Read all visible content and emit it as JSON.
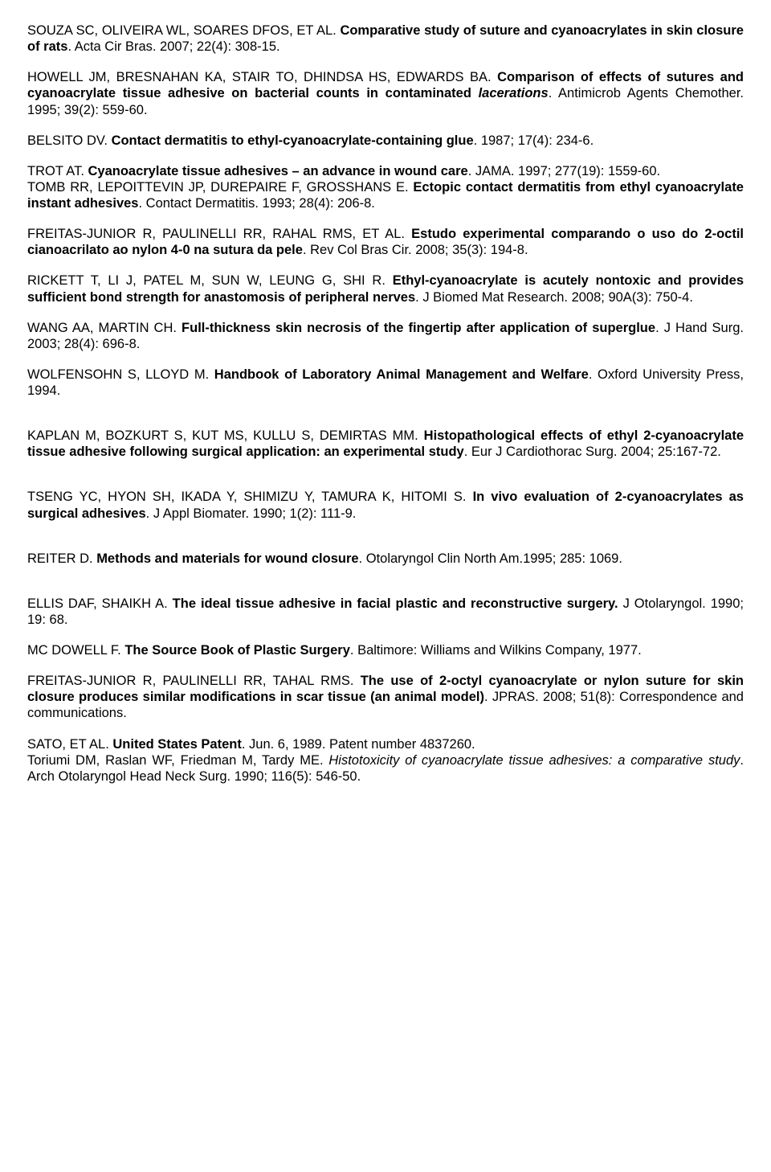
{
  "references": [
    {
      "authors": " SOUZA SC, OLIVEIRA WL, SOARES DFOS, ET AL. ",
      "title": "Comparative study of suture and cyanoacrylates in skin closure of rats",
      "titleStyle": "bold",
      "post": ". Acta Cir Bras. 2007; 22(4): 308-15."
    },
    {
      "authors": "HOWELL JM, BRESNAHAN KA, STAIR TO, DHINDSA HS, EDWARDS BA. ",
      "title": "Comparison of effects of sutures and cyanoacrylate tissue adhesive on bacterial counts in contaminated",
      "titleStyle": "bold",
      "mid": " lacerations",
      "midStyle": "bolditalic",
      "post": ". Antimicrob Agents Chemother. 1995; 39(2): 559-60."
    },
    {
      "authors": "BELSITO DV. ",
      "title": "Contact dermatitis to ethyl-cyanoacrylate-containing glue",
      "titleStyle": "bold",
      "post": ". 1987; 17(4): 234-6."
    },
    {
      "authors": "TROT AT. ",
      "title": "Cyanoacrylate tissue adhesives – an advance in wound care",
      "titleStyle": "bold",
      "post": ". JAMA. 1997; 277(19): 1559-60.",
      "extraAuthors": "TOMB RR, LEPOITTEVIN JP, DUREPAIRE F, GROSSHANS E. ",
      "extraTitle": "Ectopic contact dermatitis from ethyl cyanoacrylate instant adhesives",
      "extraTitleStyle": "bold",
      "extraPost": ". Contact Dermatitis. 1993; 28(4): 206-8."
    },
    {
      "authors": "FREITAS-JUNIOR R, PAULINELLI RR, RAHAL RMS, ET AL. ",
      "title": "Estudo experimental comparando o uso do 2-octil cianoacrilato ao nylon 4-0 na sutura da pele",
      "titleStyle": "bold",
      "post": ". Rev Col Bras Cir. 2008; 35(3): 194-8."
    },
    {
      "authors": "RICKETT T, LI J, PATEL M, SUN W, LEUNG G, SHI R. ",
      "title": "Ethyl-cyanoacrylate is acutely nontoxic and provides sufficient bond strength for anastomosis of peripheral nerves",
      "titleStyle": "bold",
      "post": ". J Biomed Mat Research. 2008; 90A(3): 750-4."
    },
    {
      "authors": "WANG AA, MARTIN CH. ",
      "title": "Full-thickness skin necrosis of the fingertip after application of superglue",
      "titleStyle": "bold",
      "post": ". J Hand Surg. 2003; 28(4): 696-8."
    },
    {
      "authors": "WOLFENSOHN S, LLOYD M. ",
      "title": "Handbook of Laboratory Animal Management and Welfare",
      "titleStyle": "bold",
      "post": ". Oxford University Press, 1994."
    },
    {
      "authors": "KAPLAN M, BOZKURT S, KUT MS, KULLU S, DEMIRTAS MM. ",
      "title": "Histopathological effects of ethyl 2-cyanoacrylate tissue adhesive following surgical application: an experimental study",
      "titleStyle": "bold",
      "post": ". Eur J Cardiothorac Surg. 2004; 25:167-72."
    },
    {
      "authors": "TSENG YC, HYON SH, IKADA Y, SHIMIZU Y, TAMURA K, HITOMI S. ",
      "title": "In vivo evaluation of 2-cyanoacrylates as surgical adhesives",
      "titleStyle": "bold",
      "post": ". J Appl Biomater. 1990; 1(2): 111-9."
    },
    {
      "authors": "REITER D. ",
      "title": "Methods and materials for wound closure",
      "titleStyle": "bold",
      "post": ". Otolaryngol Clin North Am.1995; 285: 1069."
    },
    {
      "authors": "ELLIS DAF, SHAIKH A. ",
      "title": "The ideal tissue adhesive in facial plastic and reconstructive surgery.",
      "titleStyle": "bold",
      "post": " J Otolaryngol. 1990; 19: 68."
    },
    {
      "authors": "MC DOWELL F. ",
      "title": "The Source Book of Plastic Surgery",
      "titleStyle": "bold",
      "post": ". Baltimore: Williams and Wilkins Company, 1977."
    },
    {
      "authors": "FREITAS-JUNIOR R, PAULINELLI RR, TAHAL RMS. ",
      "title": "The use of 2-octyl cyanoacrylate or nylon suture for skin closure produces similar modifications in scar tissue (an animal model)",
      "titleStyle": "bold",
      "post": ". JPRAS.  2008; 51(8): Correspondence and communications."
    },
    {
      "authors": "SATO, ET AL. ",
      "title": "United States Patent",
      "titleStyle": "bold",
      "post": ". Jun. 6, 1989. Patent number 4837260.",
      "extraAuthors": "Toriumi DM, Raslan WF, Friedman M, Tardy ME. ",
      "extraTitle": "Histotoxicity of cyanoacrylate tissue adhesives: a comparative study",
      "extraTitleStyle": "italic",
      "extraPost": ". Arch Otolaryngol Head Neck Surg. 1990; 116(5): 546-50."
    }
  ],
  "spacingAfter": {
    "7": 36,
    "8": 36,
    "9": 36,
    "10": 36
  }
}
